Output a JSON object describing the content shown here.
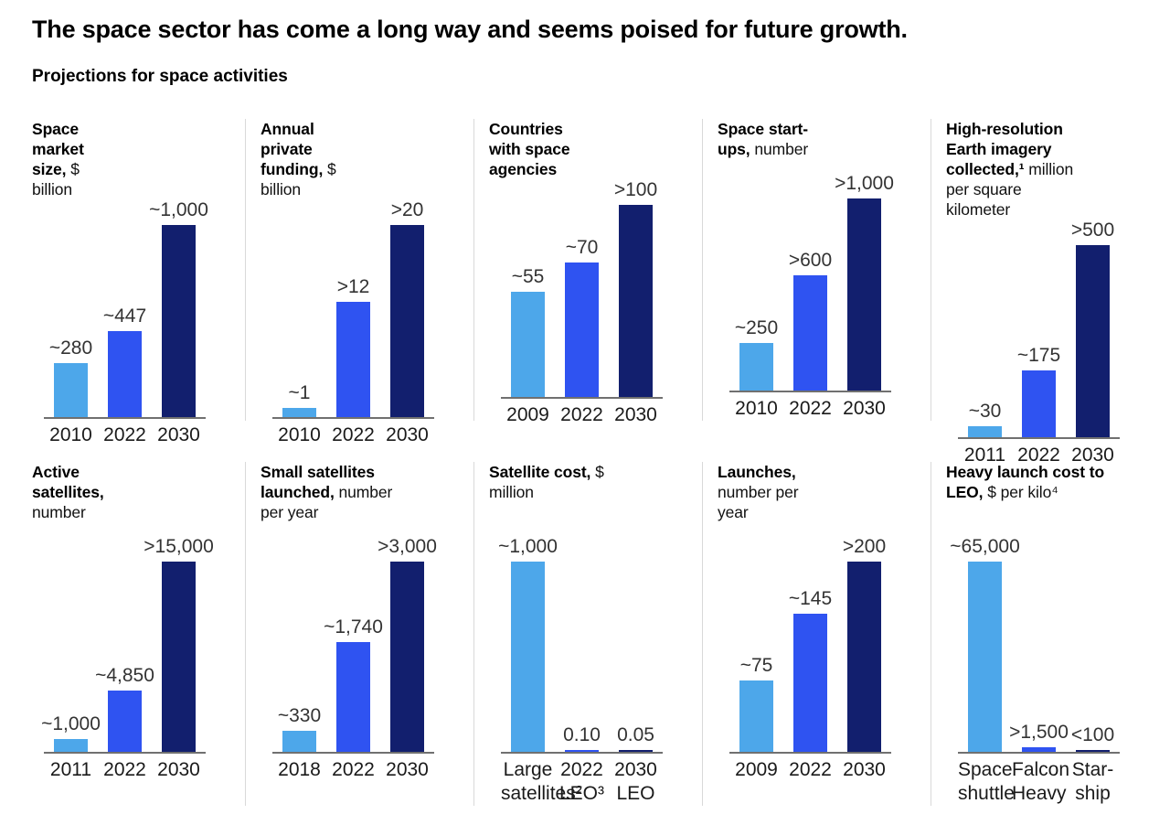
{
  "page": {
    "title": "The space sector has come a long way and seems poised for future growth.",
    "subtitle": "Projections for space activities"
  },
  "palette": {
    "bar_colors": [
      "#4DA7EA",
      "#2F53F1",
      "#121F6E"
    ],
    "axis": "#707070",
    "divider": "#D9D9D9"
  },
  "chart_data": [
    {
      "id": "space-market-size",
      "type": "bar",
      "title_bold": "Space market size,",
      "title_unit": "$ billion",
      "categories": [
        "2010",
        "2022",
        "2030"
      ],
      "values": [
        280,
        447,
        1000
      ],
      "value_labels": [
        "~280",
        "~447",
        "~1,000"
      ],
      "ylim": [
        0,
        1000
      ],
      "grid": false,
      "legend": "none"
    },
    {
      "id": "annual-private-funding",
      "type": "bar",
      "title_bold": "Annual private funding,",
      "title_unit": "$ billion",
      "categories": [
        "2010",
        "2022",
        "2030"
      ],
      "values": [
        1,
        12,
        20
      ],
      "value_labels": [
        "~1",
        ">12",
        ">20"
      ],
      "ylim": [
        0,
        20
      ],
      "grid": false,
      "legend": "none"
    },
    {
      "id": "countries-with-space-agencies",
      "type": "bar",
      "title_bold": "Countries with space agencies",
      "title_unit": "",
      "categories": [
        "2009",
        "2022",
        "2030"
      ],
      "values": [
        55,
        70,
        100
      ],
      "value_labels": [
        "~55",
        "~70",
        ">100"
      ],
      "ylim": [
        0,
        100
      ],
      "grid": false,
      "legend": "none"
    },
    {
      "id": "space-start-ups",
      "type": "bar",
      "title_bold": "Space start-ups,",
      "title_unit": "number",
      "categories": [
        "2010",
        "2022",
        "2030"
      ],
      "values": [
        250,
        600,
        1000
      ],
      "value_labels": [
        "~250",
        ">600",
        ">1,000"
      ],
      "ylim": [
        0,
        1000
      ],
      "grid": false,
      "legend": "none"
    },
    {
      "id": "earth-imagery-collected",
      "type": "bar",
      "title_bold": "High-resolution Earth imagery collected,¹",
      "title_unit": "million per square kilometer",
      "categories": [
        "2011",
        "2022",
        "2030"
      ],
      "values": [
        30,
        175,
        500
      ],
      "value_labels": [
        "~30",
        "~175",
        ">500"
      ],
      "ylim": [
        0,
        500
      ],
      "grid": false,
      "legend": "none"
    },
    {
      "id": "active-satellites",
      "type": "bar",
      "title_bold": "Active satellites,",
      "title_unit": "number",
      "categories": [
        "2011",
        "2022",
        "2030"
      ],
      "values": [
        1000,
        4850,
        15000
      ],
      "value_labels": [
        "~1,000",
        "~4,850",
        ">15,000"
      ],
      "ylim": [
        0,
        15000
      ],
      "grid": false,
      "legend": "none"
    },
    {
      "id": "small-satellites-launched",
      "type": "bar",
      "title_bold": "Small satellites launched,",
      "title_unit": "number per year",
      "categories": [
        "2018",
        "2022",
        "2030"
      ],
      "values": [
        330,
        1740,
        3000
      ],
      "value_labels": [
        "~330",
        "~1,740",
        ">3,000"
      ],
      "ylim": [
        0,
        3000
      ],
      "grid": false,
      "legend": "none"
    },
    {
      "id": "satellite-cost",
      "type": "bar",
      "title_bold": "Satellite cost,",
      "title_unit": "$ million",
      "categories": [
        "Large\nsatellites²",
        "2022\nLEO³",
        "2030\nLEO"
      ],
      "values": [
        1000,
        0.1,
        0.05
      ],
      "value_labels": [
        "~1,000",
        "0.10",
        "0.05"
      ],
      "ylim": [
        0,
        1000
      ],
      "grid": false,
      "legend": "none"
    },
    {
      "id": "launches",
      "type": "bar",
      "title_bold": "Launches,",
      "title_unit": "number per year",
      "categories": [
        "2009",
        "2022",
        "2030"
      ],
      "values": [
        75,
        145,
        200
      ],
      "value_labels": [
        "~75",
        "~145",
        ">200"
      ],
      "ylim": [
        0,
        200
      ],
      "grid": false,
      "legend": "none"
    },
    {
      "id": "heavy-launch-cost-to-leo",
      "type": "bar",
      "title_bold": "Heavy launch cost to LEO,",
      "title_unit": "$ per kilo⁴",
      "categories": [
        "Space\nshuttle",
        "Falcon\nHeavy",
        "Star-\nship"
      ],
      "values": [
        65000,
        1500,
        100
      ],
      "value_labels": [
        "~65,000",
        ">1,500",
        "<100"
      ],
      "ylim": [
        0,
        65000
      ],
      "grid": false,
      "legend": "none"
    }
  ]
}
